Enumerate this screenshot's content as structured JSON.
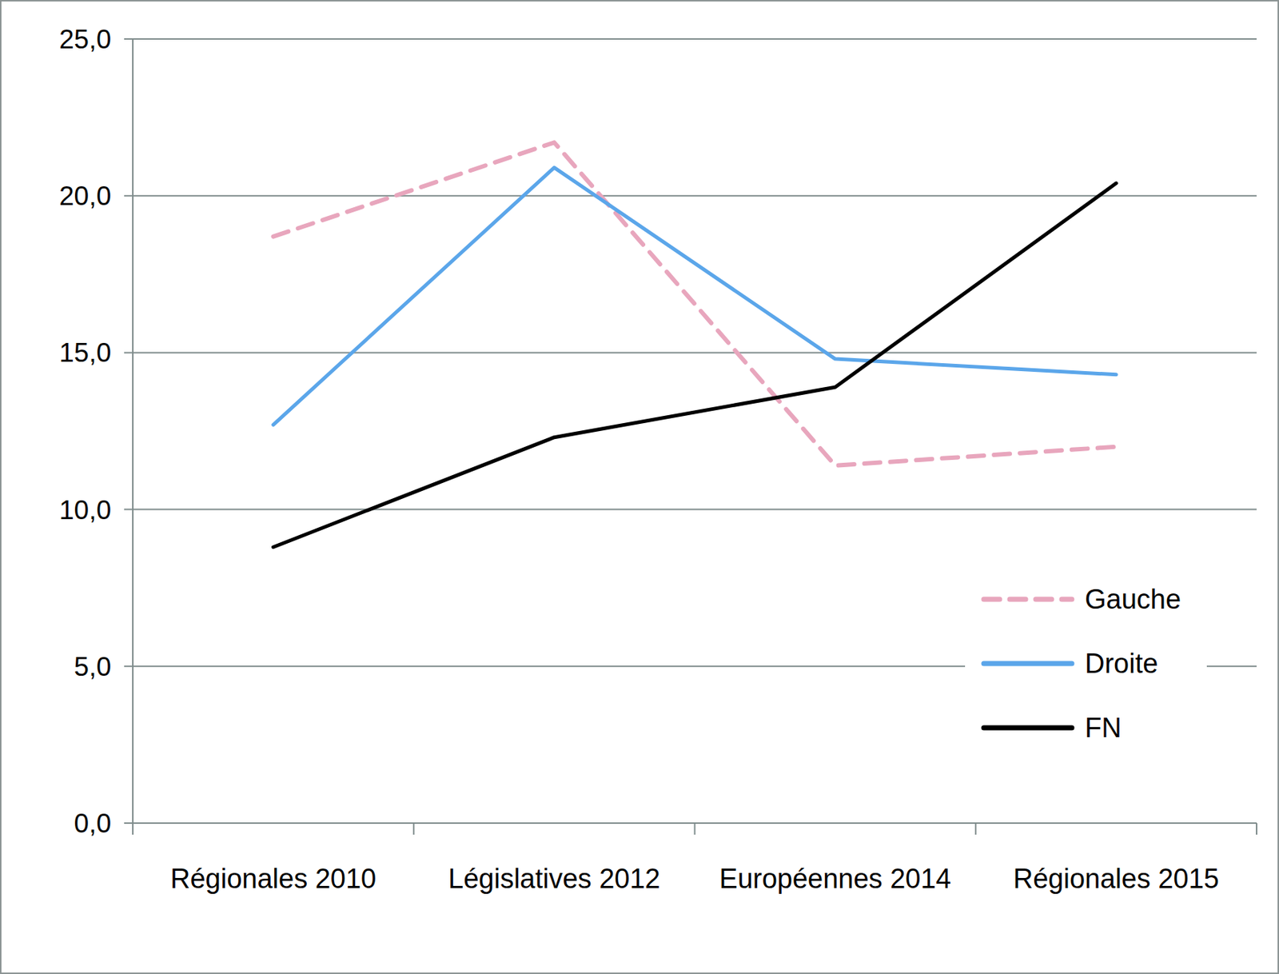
{
  "chart_data": {
    "type": "line",
    "categories": [
      "Régionales 2010",
      "Législatives 2012",
      "Européennes 2014",
      "Régionales 2015"
    ],
    "series": [
      {
        "name": "Gauche",
        "color": "#e8a6bd",
        "line_style": "dashed",
        "values": [
          18.7,
          21.7,
          11.4,
          12.0
        ]
      },
      {
        "name": "Droite",
        "color": "#5ba6ea",
        "line_style": "solid",
        "values": [
          12.7,
          20.9,
          14.8,
          14.3
        ]
      },
      {
        "name": "FN",
        "color": "#000000",
        "line_style": "solid",
        "values": [
          8.8,
          12.3,
          13.9,
          20.4
        ]
      }
    ],
    "ylim": [
      0,
      25
    ],
    "yticks": [
      {
        "value": 0,
        "label": "0,0"
      },
      {
        "value": 5,
        "label": "5,0"
      },
      {
        "value": 10,
        "label": "10,0"
      },
      {
        "value": 15,
        "label": "15,0"
      },
      {
        "value": 20,
        "label": "20,0"
      },
      {
        "value": 25,
        "label": "25,0"
      }
    ],
    "grid": true,
    "legend": "bottom-right"
  }
}
